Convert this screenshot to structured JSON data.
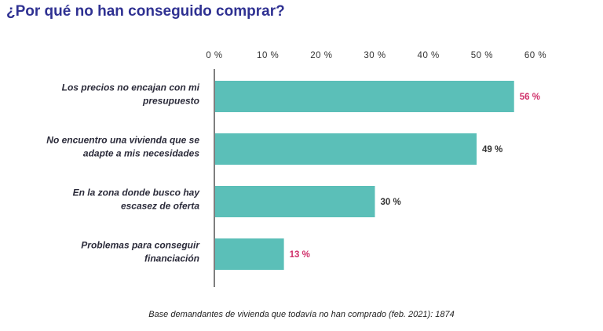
{
  "title": "¿Por qué no han conseguido comprar?",
  "footnote": "Base demandantes de vivienda que todavía no han comprado (feb. 2021): 1874",
  "colors": {
    "title": "#2f3192",
    "bar": "#5bbfb8",
    "label_highlight": "#d0306a",
    "label_normal": "#333333"
  },
  "chart_data": {
    "type": "bar",
    "orientation": "horizontal",
    "title": "¿Por qué no han conseguido comprar?",
    "xlim": [
      0,
      60
    ],
    "tick_values": [
      0,
      10,
      20,
      30,
      40,
      50,
      60
    ],
    "tick_labels": [
      "0 %",
      "10 %",
      "20 %",
      "30 %",
      "40 %",
      "50 %",
      "60 %"
    ],
    "xaxis_position": "top",
    "grid": false,
    "categories": [
      [
        "Los precios no encajan con mi",
        "presupuesto"
      ],
      [
        "No encuentro una vivienda que se",
        "adapte a mis necesidades"
      ],
      [
        "En la zona donde busco hay",
        "escasez de oferta"
      ],
      [
        "Problemas para conseguir",
        "financiación"
      ]
    ],
    "values": [
      56,
      49,
      30,
      13
    ],
    "value_labels": [
      "56 %",
      "49 %",
      "30 %",
      "13 %"
    ],
    "highlighted": [
      true,
      false,
      false,
      true
    ]
  }
}
